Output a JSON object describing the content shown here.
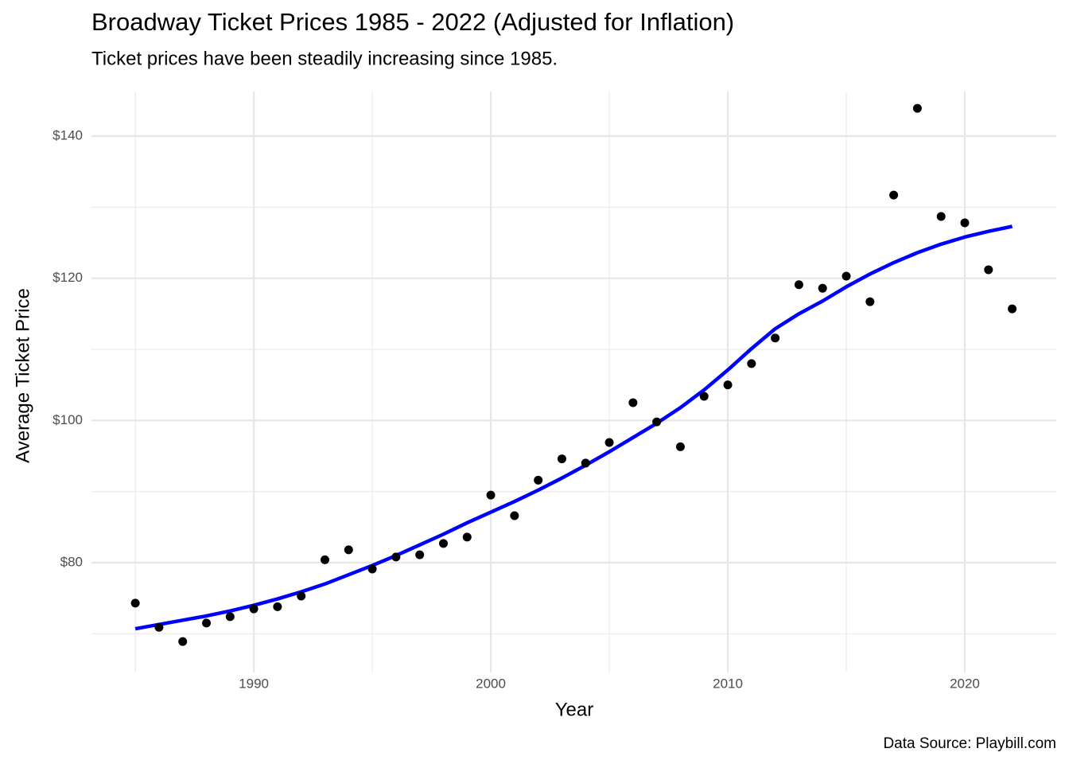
{
  "chart_data": {
    "type": "scatter",
    "title": "Broadway Ticket Prices 1985 - 2022 (Adjusted for Inflation)",
    "subtitle": "Ticket prices have been steadily increasing since 1985.",
    "x_label": "Year",
    "y_label": "Average Ticket Price",
    "caption": "Data Source: Playbill.com",
    "x": [
      1985,
      1986,
      1987,
      1988,
      1989,
      1990,
      1991,
      1992,
      1993,
      1994,
      1995,
      1996,
      1997,
      1998,
      1999,
      2000,
      2001,
      2002,
      2003,
      2004,
      2005,
      2006,
      2007,
      2008,
      2009,
      2010,
      2011,
      2012,
      2013,
      2014,
      2015,
      2016,
      2017,
      2018,
      2019,
      2020,
      2021,
      2022
    ],
    "series": [
      {
        "type": "scatter",
        "color": "#000000",
        "values": [
          74.3,
          70.9,
          68.9,
          71.5,
          72.4,
          73.5,
          73.8,
          75.3,
          80.4,
          81.8,
          79.1,
          80.8,
          81.1,
          82.7,
          83.6,
          89.5,
          86.6,
          91.6,
          94.6,
          94.0,
          96.9,
          102.5,
          99.8,
          96.3,
          103.4,
          105.0,
          108.0,
          111.6,
          119.1,
          118.6,
          120.3,
          116.7,
          131.7,
          143.9,
          128.7,
          127.8,
          121.2,
          115.7
        ]
      },
      {
        "type": "line",
        "color": "#0000ff",
        "values": [
          70.7,
          71.3,
          71.9,
          72.5,
          73.2,
          74.0,
          74.9,
          75.9,
          77.0,
          78.3,
          79.6,
          81.0,
          82.5,
          84.0,
          85.6,
          87.1,
          88.6,
          90.2,
          91.9,
          93.7,
          95.6,
          97.6,
          99.6,
          101.8,
          104.3,
          107.1,
          110.1,
          112.9,
          115.0,
          116.8,
          118.8,
          120.6,
          122.2,
          123.6,
          124.8,
          125.8,
          126.6,
          127.3
        ]
      }
    ],
    "xlim": [
      1983.15,
      2023.86
    ],
    "ylim": [
      64.55,
      146.27
    ],
    "xticks": [
      1990,
      2000,
      2010,
      2020
    ],
    "x_minor_grid": [
      1985,
      1995,
      2005,
      2015
    ],
    "yticks": [
      {
        "value": 80,
        "label": "$80"
      },
      {
        "value": 100,
        "label": "$100"
      },
      {
        "value": 120,
        "label": "$120"
      },
      {
        "value": 140,
        "label": "$140"
      }
    ],
    "y_minor_grid": [
      70,
      90,
      110,
      130
    ],
    "grid": true
  }
}
